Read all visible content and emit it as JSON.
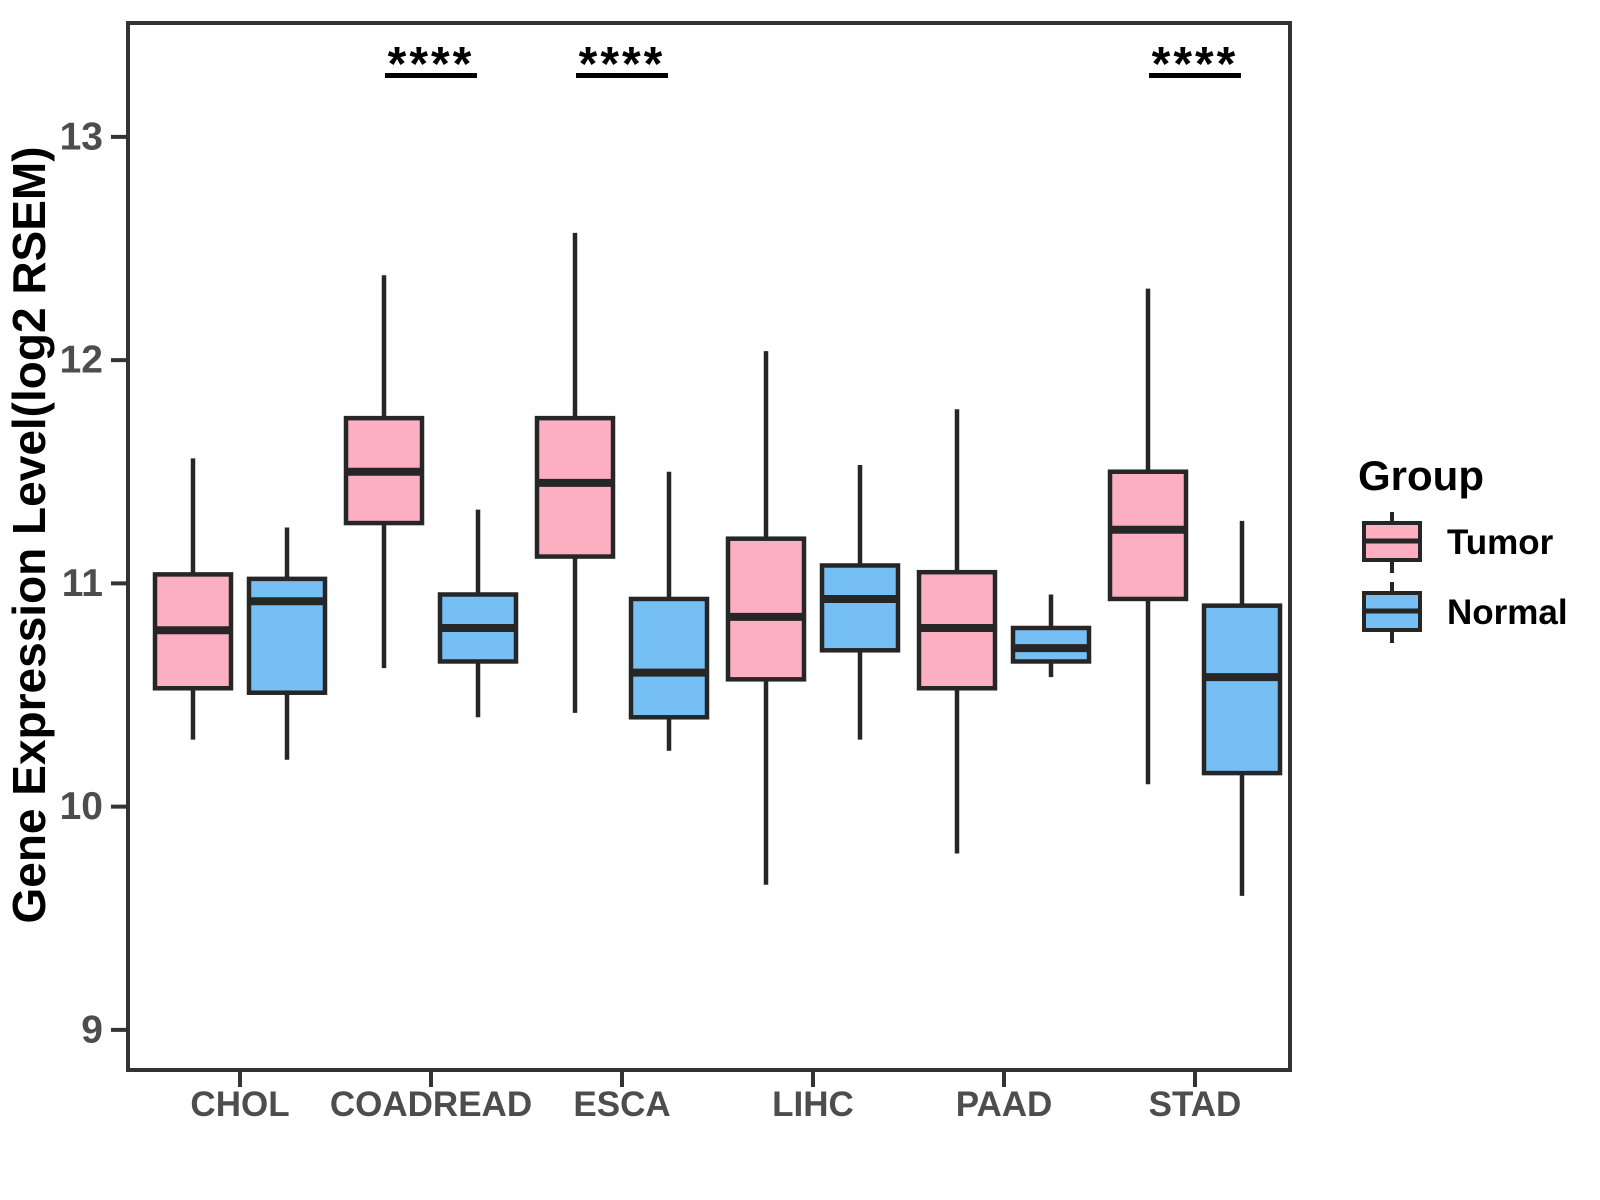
{
  "chart_data": {
    "type": "boxplot",
    "title": "",
    "xlabel": "",
    "ylabel": "Gene Expression Level(log2 RSEM)",
    "ylim": [
      8.82,
      13.51
    ],
    "yticks": [
      9,
      10,
      11,
      12,
      13
    ],
    "categories": [
      "CHOL",
      "COADREAD",
      "ESCA",
      "LIHC",
      "PAAD",
      "STAD"
    ],
    "grid": false,
    "legend_position": "right-center",
    "series": [
      {
        "name": "Tumor",
        "fill": "#FBAFC1",
        "boxes": [
          {
            "category": "CHOL",
            "min": 10.3,
            "q1": 10.53,
            "median": 10.79,
            "q3": 11.04,
            "max": 11.56
          },
          {
            "category": "COADREAD",
            "min": 10.62,
            "q1": 11.27,
            "median": 11.5,
            "q3": 11.74,
            "max": 12.38
          },
          {
            "category": "ESCA",
            "min": 10.42,
            "q1": 11.12,
            "median": 11.45,
            "q3": 11.74,
            "max": 12.57
          },
          {
            "category": "LIHC",
            "min": 9.65,
            "q1": 10.57,
            "median": 10.85,
            "q3": 11.2,
            "max": 12.04
          },
          {
            "category": "PAAD",
            "min": 9.79,
            "q1": 10.53,
            "median": 10.8,
            "q3": 11.05,
            "max": 11.78
          },
          {
            "category": "STAD",
            "min": 10.1,
            "q1": 10.93,
            "median": 11.24,
            "q3": 11.5,
            "max": 12.32
          }
        ]
      },
      {
        "name": "Normal",
        "fill": "#76BFF5",
        "boxes": [
          {
            "category": "CHOL",
            "min": 10.21,
            "q1": 10.51,
            "median": 10.92,
            "q3": 11.02,
            "max": 11.25
          },
          {
            "category": "COADREAD",
            "min": 10.4,
            "q1": 10.65,
            "median": 10.8,
            "q3": 10.95,
            "max": 11.33
          },
          {
            "category": "ESCA",
            "min": 10.25,
            "q1": 10.4,
            "median": 10.6,
            "q3": 10.93,
            "max": 11.5
          },
          {
            "category": "LIHC",
            "min": 10.3,
            "q1": 10.7,
            "median": 10.93,
            "q3": 11.08,
            "max": 11.53
          },
          {
            "category": "PAAD",
            "min": 10.58,
            "q1": 10.65,
            "median": 10.71,
            "q3": 10.8,
            "max": 10.95
          },
          {
            "category": "STAD",
            "min": 9.6,
            "q1": 10.15,
            "median": 10.58,
            "q3": 10.9,
            "max": 11.28
          }
        ]
      }
    ],
    "significance": [
      {
        "category": "COADREAD",
        "label": "****"
      },
      {
        "category": "ESCA",
        "label": "****"
      },
      {
        "category": "STAD",
        "label": "****"
      }
    ]
  },
  "legend": {
    "title": "Group",
    "items": [
      {
        "label": "Tumor",
        "color": "#FBAFC1"
      },
      {
        "label": "Normal",
        "color": "#76BFF5"
      }
    ]
  },
  "colors": {
    "tumor_fill": "#FBAFC1",
    "normal_fill": "#76BFF5",
    "box_stroke": "#262626",
    "panel_border": "#333333",
    "axis_tick_text": "#4d4d4d",
    "title_text": "#000000",
    "significance_text": "#000000"
  }
}
